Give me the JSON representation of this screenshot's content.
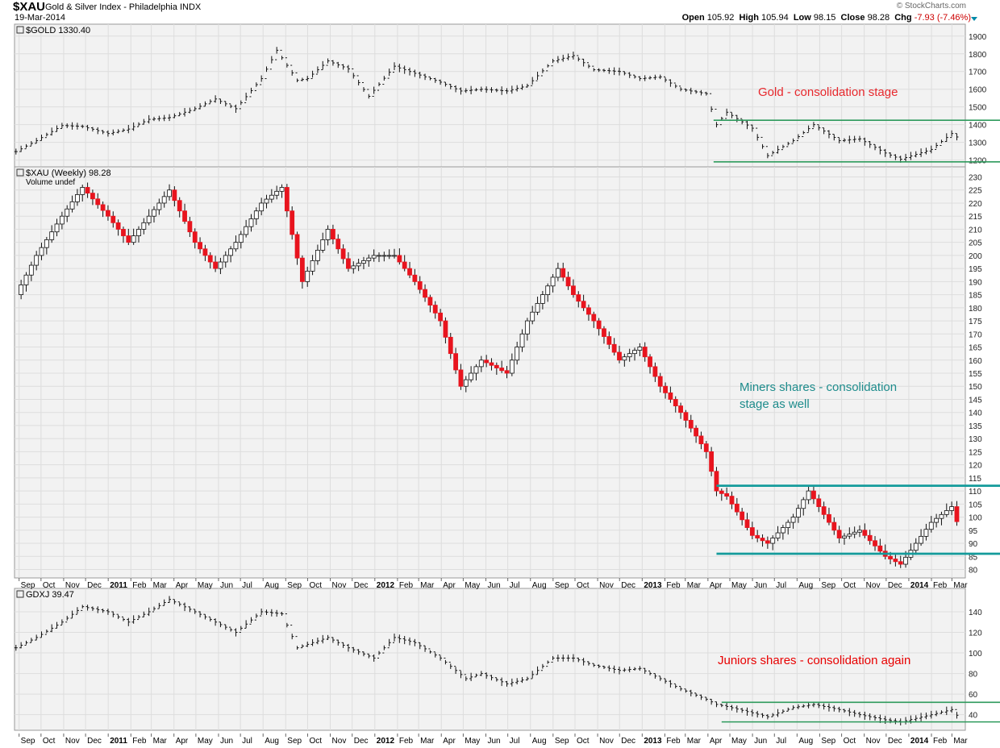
{
  "header": {
    "symbol": "$XAU",
    "name": "Gold & Silver Index - Philadelphia",
    "exchange": "INDX",
    "date": "19-Mar-2014",
    "watermark": "© StockCharts.com",
    "open_label": "Open",
    "open": "105.92",
    "high_label": "High",
    "high": "105.94",
    "low_label": "Low",
    "low": "98.15",
    "close_label": "Close",
    "close": "98.28",
    "chg_label": "Chg",
    "chg": "-7.93 (-7.46%)"
  },
  "chart_data": [
    {
      "type": "line",
      "title": "$GOLD 1330.40",
      "annotation": "Gold - consolidation stage",
      "ylim": [
        1180,
        1940
      ],
      "yticks": [
        1200,
        1300,
        1400,
        1500,
        1600,
        1700,
        1800,
        1900
      ],
      "x": [
        "2010-09-03",
        "2010-10-01",
        "2010-11-05",
        "2010-12-03",
        "2011-01-07",
        "2011-02-04",
        "2011-03-04",
        "2011-04-01",
        "2011-05-06",
        "2011-06-03",
        "2011-07-01",
        "2011-08-05",
        "2011-08-26",
        "2011-09-23",
        "2011-10-07",
        "2011-11-04",
        "2011-12-02",
        "2011-12-30",
        "2012-02-03",
        "2012-03-02",
        "2012-04-06",
        "2012-05-04",
        "2012-06-01",
        "2012-07-06",
        "2012-08-03",
        "2012-09-07",
        "2012-10-05",
        "2012-11-02",
        "2012-12-07",
        "2013-01-04",
        "2013-02-01",
        "2013-03-01",
        "2013-04-05",
        "2013-04-19",
        "2013-05-03",
        "2013-06-07",
        "2013-06-28",
        "2013-08-02",
        "2013-08-30",
        "2013-10-04",
        "2013-11-01",
        "2013-12-06",
        "2013-12-27",
        "2014-02-07",
        "2014-03-07",
        "2014-03-19"
      ],
      "series": [
        {
          "name": "$GOLD",
          "values": [
            1248,
            1310,
            1395,
            1390,
            1350,
            1375,
            1430,
            1440,
            1490,
            1545,
            1490,
            1660,
            1820,
            1650,
            1660,
            1760,
            1715,
            1560,
            1730,
            1690,
            1640,
            1590,
            1600,
            1590,
            1620,
            1760,
            1790,
            1710,
            1700,
            1660,
            1670,
            1600,
            1575,
            1400,
            1470,
            1380,
            1225,
            1310,
            1400,
            1310,
            1320,
            1240,
            1205,
            1260,
            1350,
            1330.4
          ]
        }
      ],
      "support": 1190,
      "resistance": 1425
    },
    {
      "type": "candlestick",
      "title": "$XAU (Weekly) 98.28",
      "volume_label": "Volume undef",
      "annotation": "Miners shares - consolidation stage as well",
      "ylim": [
        78,
        232
      ],
      "yticks": [
        80,
        85,
        90,
        95,
        100,
        105,
        110,
        115,
        120,
        125,
        130,
        135,
        140,
        145,
        150,
        155,
        160,
        165,
        170,
        175,
        180,
        185,
        190,
        195,
        200,
        205,
        210,
        215,
        220,
        225,
        230
      ],
      "x": [
        "2010-09-03",
        "2010-10-01",
        "2010-11-05",
        "2010-12-03",
        "2011-01-07",
        "2011-02-04",
        "2011-03-04",
        "2011-04-01",
        "2011-05-06",
        "2011-06-03",
        "2011-07-01",
        "2011-08-05",
        "2011-09-02",
        "2011-09-30",
        "2011-11-04",
        "2011-12-02",
        "2012-01-06",
        "2012-02-03",
        "2012-03-02",
        "2012-04-06",
        "2012-05-04",
        "2012-06-01",
        "2012-07-06",
        "2012-08-03",
        "2012-09-14",
        "2012-10-05",
        "2012-11-02",
        "2012-12-07",
        "2013-01-04",
        "2013-02-01",
        "2013-03-01",
        "2013-04-05",
        "2013-04-19",
        "2013-05-03",
        "2013-06-07",
        "2013-06-28",
        "2013-08-02",
        "2013-08-23",
        "2013-10-04",
        "2013-11-01",
        "2013-12-06",
        "2013-12-27",
        "2014-02-07",
        "2014-03-07",
        "2014-03-19"
      ],
      "series": [
        {
          "name": "$XAU",
          "values": [
            185,
            200,
            215,
            226,
            215,
            205,
            215,
            225,
            205,
            195,
            205,
            220,
            226,
            190,
            210,
            195,
            200,
            200,
            190,
            175,
            150,
            160,
            155,
            175,
            195,
            185,
            175,
            160,
            165,
            150,
            140,
            125,
            110,
            108,
            93,
            90,
            100,
            110,
            92,
            95,
            85,
            82,
            98,
            104,
            98.28
          ]
        }
      ],
      "support": 86,
      "resistance": 112
    },
    {
      "type": "line",
      "title": "GDXJ 39.47",
      "annotation": "Juniors shares - consolidation again",
      "ylim": [
        28,
        158
      ],
      "yticks": [
        40,
        60,
        80,
        100,
        120,
        140
      ],
      "x": [
        "2010-09-03",
        "2010-10-01",
        "2010-11-05",
        "2010-12-03",
        "2011-01-07",
        "2011-02-04",
        "2011-03-04",
        "2011-04-01",
        "2011-05-06",
        "2011-06-03",
        "2011-07-01",
        "2011-08-05",
        "2011-09-02",
        "2011-09-23",
        "2011-11-04",
        "2011-12-02",
        "2012-01-06",
        "2012-02-03",
        "2012-03-02",
        "2012-04-06",
        "2012-05-11",
        "2012-06-01",
        "2012-07-06",
        "2012-08-03",
        "2012-09-07",
        "2012-10-05",
        "2012-11-02",
        "2012-12-07",
        "2013-01-04",
        "2013-02-01",
        "2013-03-01",
        "2013-04-05",
        "2013-04-19",
        "2013-05-03",
        "2013-06-28",
        "2013-08-02",
        "2013-08-30",
        "2013-10-04",
        "2013-11-01",
        "2013-12-06",
        "2013-12-27",
        "2014-02-07",
        "2014-03-07",
        "2014-03-19"
      ],
      "series": [
        {
          "name": "GDXJ",
          "values": [
            105,
            115,
            130,
            145,
            140,
            130,
            140,
            152,
            140,
            130,
            120,
            140,
            138,
            105,
            115,
            105,
            95,
            115,
            110,
            95,
            75,
            80,
            70,
            75,
            95,
            95,
            88,
            83,
            85,
            75,
            65,
            55,
            50,
            48,
            38,
            47,
            50,
            45,
            40,
            35,
            33,
            40,
            45,
            39.47
          ]
        }
      ],
      "support": 33,
      "resistance": 52
    }
  ],
  "x_axis": {
    "labels": [
      {
        "text": "Sep",
        "date": "2010-09-15",
        "bold": false
      },
      {
        "text": "Oct",
        "date": "2010-10-15",
        "bold": false
      },
      {
        "text": "Nov",
        "date": "2010-11-15",
        "bold": false
      },
      {
        "text": "Dec",
        "date": "2010-12-15",
        "bold": false
      },
      {
        "text": "2011",
        "date": "2011-01-15",
        "bold": true
      },
      {
        "text": "Feb",
        "date": "2011-02-15",
        "bold": false
      },
      {
        "text": "Mar",
        "date": "2011-03-15",
        "bold": false
      },
      {
        "text": "Apr",
        "date": "2011-04-15",
        "bold": false
      },
      {
        "text": "May",
        "date": "2011-05-15",
        "bold": false
      },
      {
        "text": "Jun",
        "date": "2011-06-15",
        "bold": false
      },
      {
        "text": "Jul",
        "date": "2011-07-15",
        "bold": false
      },
      {
        "text": "Aug",
        "date": "2011-08-15",
        "bold": false
      },
      {
        "text": "Sep",
        "date": "2011-09-15",
        "bold": false
      },
      {
        "text": "Oct",
        "date": "2011-10-15",
        "bold": false
      },
      {
        "text": "Nov",
        "date": "2011-11-15",
        "bold": false
      },
      {
        "text": "Dec",
        "date": "2011-12-15",
        "bold": false
      },
      {
        "text": "2012",
        "date": "2012-01-15",
        "bold": true
      },
      {
        "text": "Feb",
        "date": "2012-02-15",
        "bold": false
      },
      {
        "text": "Mar",
        "date": "2012-03-15",
        "bold": false
      },
      {
        "text": "Apr",
        "date": "2012-04-15",
        "bold": false
      },
      {
        "text": "May",
        "date": "2012-05-15",
        "bold": false
      },
      {
        "text": "Jun",
        "date": "2012-06-15",
        "bold": false
      },
      {
        "text": "Jul",
        "date": "2012-07-15",
        "bold": false
      },
      {
        "text": "Aug",
        "date": "2012-08-15",
        "bold": false
      },
      {
        "text": "Sep",
        "date": "2012-09-15",
        "bold": false
      },
      {
        "text": "Oct",
        "date": "2012-10-15",
        "bold": false
      },
      {
        "text": "Nov",
        "date": "2012-11-15",
        "bold": false
      },
      {
        "text": "Dec",
        "date": "2012-12-15",
        "bold": false
      },
      {
        "text": "2013",
        "date": "2013-01-15",
        "bold": true
      },
      {
        "text": "Feb",
        "date": "2013-02-15",
        "bold": false
      },
      {
        "text": "Mar",
        "date": "2013-03-15",
        "bold": false
      },
      {
        "text": "Apr",
        "date": "2013-04-15",
        "bold": false
      },
      {
        "text": "May",
        "date": "2013-05-15",
        "bold": false
      },
      {
        "text": "Jun",
        "date": "2013-06-15",
        "bold": false
      },
      {
        "text": "Jul",
        "date": "2013-07-15",
        "bold": false
      },
      {
        "text": "Aug",
        "date": "2013-08-15",
        "bold": false
      },
      {
        "text": "Sep",
        "date": "2013-09-15",
        "bold": false
      },
      {
        "text": "Oct",
        "date": "2013-10-15",
        "bold": false
      },
      {
        "text": "Nov",
        "date": "2013-11-15",
        "bold": false
      },
      {
        "text": "Dec",
        "date": "2013-12-15",
        "bold": false
      },
      {
        "text": "2014",
        "date": "2014-01-15",
        "bold": true
      },
      {
        "text": "Feb",
        "date": "2014-02-15",
        "bold": false
      },
      {
        "text": "Mar",
        "date": "2014-03-15",
        "bold": false
      }
    ]
  },
  "colors": {
    "background": "#f2f2f2",
    "grid": "#dddddd",
    "up_candle": "#ffffff",
    "down_candle": "#e8141e",
    "gold_annotation": "#e8282d",
    "miners_annotation": "#1e8c8c",
    "juniors_annotation": "#e80000",
    "gold_lines": "#2e9a5c",
    "miners_lines": "#149b9b",
    "juniors_lines": "#2e9a5c"
  }
}
